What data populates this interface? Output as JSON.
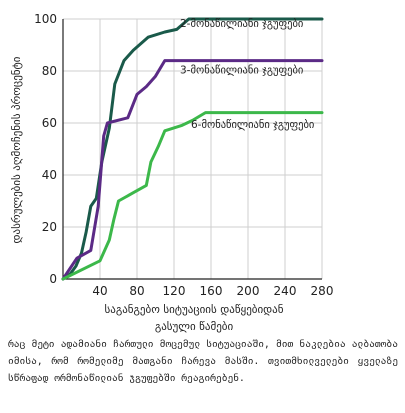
{
  "chart_data": {
    "type": "line",
    "ylabel": "დასრულების აღმოჩენის პროცენტი",
    "xlabel_lines": [
      "საგანგებო სიტუაციის დაწყებიდან",
      "გასული წამები"
    ],
    "xlim": [
      0,
      280
    ],
    "ylim": [
      0,
      100
    ],
    "xticks": [
      0,
      40,
      80,
      120,
      160,
      200,
      240,
      280
    ],
    "xtick_labels": [
      "",
      "40",
      "80",
      "120",
      "160",
      "200",
      "240",
      "280"
    ],
    "yticks": [
      0,
      20,
      40,
      60,
      80,
      100
    ],
    "ytick_labels": [
      "0",
      "20",
      "40",
      "60",
      "80",
      "100"
    ],
    "grid": true,
    "series": [
      {
        "name": "2-მონაწილიანი ჯგუფები",
        "color": "#1a5a4a",
        "x": [
          0,
          8,
          14,
          20,
          25,
          30,
          36,
          42,
          50,
          56,
          66,
          76,
          92,
          110,
          123,
          136,
          280
        ],
        "y": [
          0,
          2,
          5,
          10,
          18,
          28,
          31,
          45,
          58,
          75,
          84,
          88,
          93,
          95,
          96,
          100,
          100
        ]
      },
      {
        "name": "3-მონაწილიანი ჯგუფები",
        "color": "#5b2a86",
        "x": [
          0,
          15,
          30,
          38,
          44,
          48,
          70,
          80,
          90,
          100,
          110,
          280
        ],
        "y": [
          0,
          8,
          11,
          28,
          55,
          60,
          62,
          71,
          74,
          78,
          84,
          84
        ]
      },
      {
        "name": "6-მონაწილიანი ჯგუფები",
        "color": "#3cb84a",
        "x": [
          0,
          40,
          50,
          55,
          60,
          75,
          90,
          95,
          103,
          110,
          128,
          140,
          154,
          280
        ],
        "y": [
          0,
          7,
          15,
          23,
          30,
          33,
          36,
          45,
          51,
          57,
          59,
          61,
          64,
          64
        ]
      }
    ]
  },
  "caption": "რაც მეტი ადამიანი ჩართული მოცემულ სიტუაციაში, მით ნაკლებია ალბათობა იმისა, რომ რომელიმე მათგანი ჩარევა მასში. თვითმხილველები ყველაზე სწრაფად ორმონაწილიან ჯგუფებში რეაგირებენ."
}
